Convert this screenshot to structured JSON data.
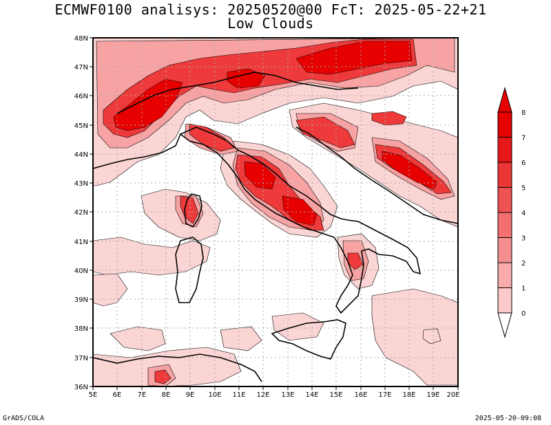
{
  "title_line1": "ECMWF0100 analisys: 20250520@00 FcT: 2025-05-22+21",
  "title_line2": "Low Clouds",
  "lat_labels": [
    "48N",
    "47N",
    "46N",
    "45N",
    "44N",
    "43N",
    "42N",
    "41N",
    "40N",
    "39N",
    "38N",
    "37N",
    "36N"
  ],
  "lon_labels": [
    "5E",
    "6E",
    "7E",
    "8E",
    "9E",
    "10E",
    "11E",
    "12E",
    "13E",
    "14E",
    "15E",
    "16E",
    "17E",
    "18E",
    "19E",
    "20E"
  ],
  "colorbar": {
    "levels": [
      "0",
      "1",
      "2",
      "3",
      "4",
      "5",
      "6",
      "7",
      "8"
    ],
    "colors": [
      "#fde2e2",
      "#fbc9c9",
      "#f8acac",
      "#f58f8f",
      "#f27070",
      "#ef5252",
      "#ec3535",
      "#e81717",
      "#e60000"
    ]
  },
  "footer_left": "GrADS/COLA",
  "footer_right": "2025-05-20-09:08"
}
